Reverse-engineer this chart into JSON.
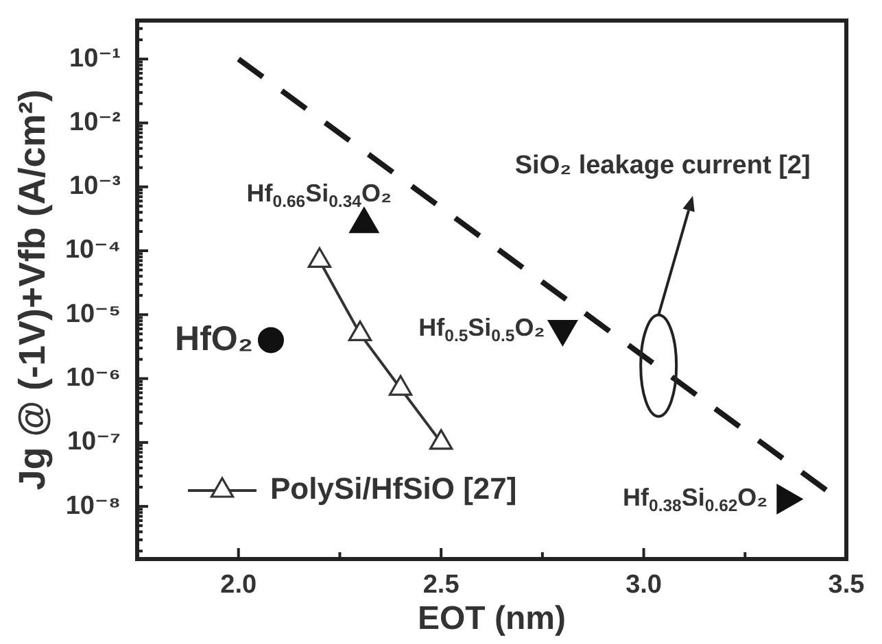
{
  "chart_data": {
    "type": "scatter",
    "xlabel": "EOT (nm)",
    "ylabel": "Jg @ (-1V)+Vfb (A/cm²)",
    "xlim": [
      1.75,
      3.5
    ],
    "xticks": [
      {
        "value": 2,
        "label": "2.0"
      },
      {
        "value": 2.25,
        "label": null
      },
      {
        "value": 2.5,
        "label": "2.5"
      },
      {
        "value": 2.75,
        "label": null
      },
      {
        "value": 3,
        "label": "3.0"
      },
      {
        "value": 3.25,
        "label": null
      },
      {
        "value": 3.5,
        "label": "3.5"
      }
    ],
    "ylim": [
      1.5e-09,
      0.4
    ],
    "log": true,
    "yticks": [
      {
        "value": 2e-09,
        "label": null
      },
      {
        "value": 3e-09,
        "label": null
      },
      {
        "value": 4e-09,
        "label": null
      },
      {
        "value": 5e-09,
        "label": null
      },
      {
        "value": 6e-09,
        "label": null
      },
      {
        "value": 7e-09,
        "label": null
      },
      {
        "value": 8e-09,
        "label": null
      },
      {
        "value": 9e-09,
        "label": null
      },
      {
        "value": 1e-08,
        "label": "10⁻⁸"
      },
      {
        "value": 2e-08,
        "label": null
      },
      {
        "value": 3e-08,
        "label": null
      },
      {
        "value": 4e-08,
        "label": null
      },
      {
        "value": 5e-08,
        "label": null
      },
      {
        "value": 6e-08,
        "label": null
      },
      {
        "value": 7e-08,
        "label": null
      },
      {
        "value": 8e-08,
        "label": null
      },
      {
        "value": 9e-08,
        "label": null
      },
      {
        "value": 1e-07,
        "label": "10⁻⁷"
      },
      {
        "value": 2e-07,
        "label": null
      },
      {
        "value": 3e-07,
        "label": null
      },
      {
        "value": 4e-07,
        "label": null
      },
      {
        "value": 5e-07,
        "label": null
      },
      {
        "value": 6e-07,
        "label": null
      },
      {
        "value": 7e-07,
        "label": null
      },
      {
        "value": 8e-07,
        "label": null
      },
      {
        "value": 9e-07,
        "label": null
      },
      {
        "value": 1e-06,
        "label": "10⁻⁶"
      },
      {
        "value": 2e-06,
        "label": null
      },
      {
        "value": 3e-06,
        "label": null
      },
      {
        "value": 4e-06,
        "label": null
      },
      {
        "value": 5e-06,
        "label": null
      },
      {
        "value": 6e-06,
        "label": null
      },
      {
        "value": 7e-06,
        "label": null
      },
      {
        "value": 8e-06,
        "label": null
      },
      {
        "value": 9e-06,
        "label": null
      },
      {
        "value": 1e-05,
        "label": "10⁻⁵"
      },
      {
        "value": 2e-05,
        "label": null
      },
      {
        "value": 3e-05,
        "label": null
      },
      {
        "value": 4e-05,
        "label": null
      },
      {
        "value": 5e-05,
        "label": null
      },
      {
        "value": 6e-05,
        "label": null
      },
      {
        "value": 7e-05,
        "label": null
      },
      {
        "value": 8e-05,
        "label": null
      },
      {
        "value": 9e-05,
        "label": null
      },
      {
        "value": 0.0001,
        "label": "10⁻⁴"
      },
      {
        "value": 0.0002,
        "label": null
      },
      {
        "value": 0.0003,
        "label": null
      },
      {
        "value": 0.0004,
        "label": null
      },
      {
        "value": 0.0005,
        "label": null
      },
      {
        "value": 0.0006,
        "label": null
      },
      {
        "value": 0.0007,
        "label": null
      },
      {
        "value": 0.0008,
        "label": null
      },
      {
        "value": 0.0009,
        "label": null
      },
      {
        "value": 0.001,
        "label": "10⁻³"
      },
      {
        "value": 0.002,
        "label": null
      },
      {
        "value": 0.003,
        "label": null
      },
      {
        "value": 0.004,
        "label": null
      },
      {
        "value": 0.005,
        "label": null
      },
      {
        "value": 0.006,
        "label": null
      },
      {
        "value": 0.007,
        "label": null
      },
      {
        "value": 0.008,
        "label": null
      },
      {
        "value": 0.009,
        "label": null
      },
      {
        "value": 0.01,
        "label": "10⁻²"
      },
      {
        "value": 0.02,
        "label": null
      },
      {
        "value": 0.03,
        "label": null
      },
      {
        "value": 0.04,
        "label": null
      },
      {
        "value": 0.05,
        "label": null
      },
      {
        "value": 0.06,
        "label": null
      },
      {
        "value": 0.07,
        "label": null
      },
      {
        "value": 0.08,
        "label": null
      },
      {
        "value": 0.09,
        "label": null
      },
      {
        "value": 0.1,
        "label": "10⁻¹"
      },
      {
        "value": 0.2,
        "label": null
      },
      {
        "value": 0.3,
        "label": null
      }
    ],
    "series": [
      {
        "type": "line",
        "x": [
          2.0,
          3.45
        ],
        "values": [
          0.1,
          1.8e-08
        ],
        "color": "#1a1a1a",
        "line_style": "dashed",
        "marker": "none"
      },
      {
        "name": "PolySi/HfSiO [27]",
        "type": "line",
        "x": [
          2.2,
          2.3,
          2.4,
          2.5
        ],
        "values": [
          7e-05,
          5e-06,
          7e-07,
          1e-07
        ],
        "color": "#333333",
        "marker": "triangle",
        "line_style": "solid"
      },
      {
        "x": [
          2.08
        ],
        "values": [
          4e-06
        ],
        "color": "#111111",
        "marker": "circle"
      },
      {
        "x": [
          2.31
        ],
        "values": [
          0.00026
        ],
        "color": "#111111",
        "marker": "triangle"
      },
      {
        "x": [
          2.8
        ],
        "values": [
          6e-06
        ],
        "color": "#111111",
        "marker": "triangle-down"
      },
      {
        "x": [
          3.35
        ],
        "values": [
          1.3e-08
        ],
        "color": "#111111",
        "marker": "triangle-right"
      }
    ],
    "legend": "bottom left",
    "annotations": [
      "SiO₂ leakage current [2]",
      {
        "text": "Hf$_{0.66}$Si$_{0.34}$O₂",
        "x": 2.31,
        "y": 0.00026
      },
      {
        "text": "HfO₂",
        "x": 2.08,
        "y": 4e-06
      },
      {
        "text": "Hf$_{0.5}$Si$_{0.5}$O₂",
        "x": 2.8,
        "y": 6e-06
      },
      {
        "text": "Hf$_{0.38}$Si$_{0.62}$O₂",
        "x": 3.35,
        "y": 1.3e-08
      }
    ]
  }
}
